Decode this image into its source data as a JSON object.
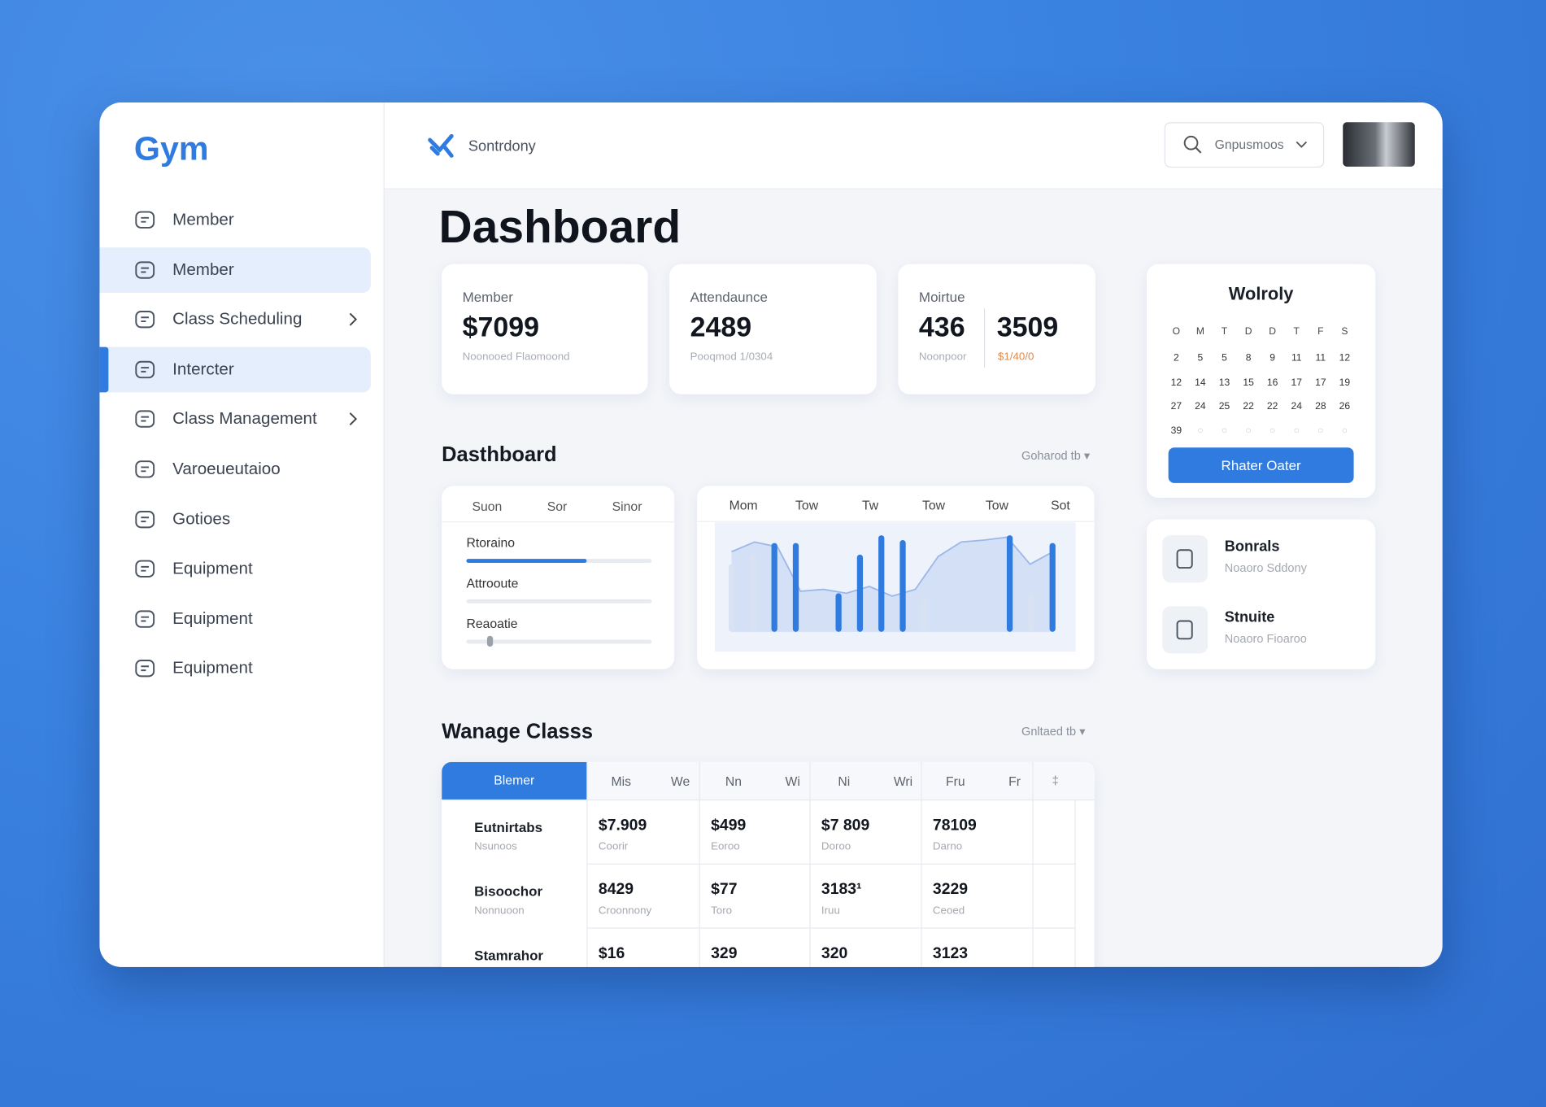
{
  "sidebar": {
    "logo": "Gym",
    "nav": [
      {
        "label": "Member"
      },
      {
        "label": "Member",
        "active": true
      },
      {
        "label": "Class Scheduling",
        "chevron": true
      },
      {
        "label": "Intercter",
        "active": true,
        "current": true
      },
      {
        "label": "Class Management",
        "chevron": true
      },
      {
        "label": "Varoeueutaioo"
      },
      {
        "label": "Gotioes"
      },
      {
        "label": "Equipment"
      },
      {
        "label": "Equipment"
      },
      {
        "label": "Equipment"
      }
    ]
  },
  "header": {
    "brand": "Sontrdony",
    "search": "Gnpusmoos"
  },
  "page_title": "Dashboard",
  "stats": [
    {
      "label": "Member",
      "value": "$7099",
      "note": "Noonooed Flaomoond"
    },
    {
      "label": "Attendaunce",
      "value": "2489",
      "note": "Pooqmod 1/0304"
    },
    {
      "label": "Moirtue",
      "value": "436",
      "note": "Noonpoor",
      "value2": "3509",
      "note2": "$1/40/0"
    }
  ],
  "calendar": {
    "title": "Wolroly",
    "weekdays": [
      "O",
      "M",
      "T",
      "D",
      "D",
      "T",
      "F",
      "S"
    ],
    "rows": [
      [
        "2",
        "5",
        "5",
        "8",
        "9",
        "11",
        "11",
        "12"
      ],
      [
        "12",
        "14",
        "13",
        "15",
        "16",
        "17",
        "17",
        "19"
      ],
      [
        "27",
        "24",
        "25",
        "22",
        "22",
        "24",
        "28",
        "26"
      ],
      [
        "39",
        "○",
        "○",
        "○",
        "○",
        "○",
        "○",
        "○"
      ]
    ],
    "button": "Rhater Oater"
  },
  "overview": {
    "title": "Dasthboard",
    "filter": "Goharod tb ▾",
    "progress": {
      "tabs": [
        "Suon",
        "Sor",
        "Sinor"
      ],
      "items": [
        {
          "label": "Rtoraino",
          "value": 65
        },
        {
          "label": "Attrooute",
          "value": 0
        },
        {
          "label": "Reaoatie",
          "value": 13
        }
      ],
      "ylim": [
        0,
        100
      ]
    },
    "chart": {
      "type": "bar",
      "categories": [
        "Mom",
        "Tow",
        "Tw",
        "Tow",
        "Tow",
        "Sot"
      ],
      "ylim": [
        0,
        100
      ],
      "bars": [
        {
          "value": 70,
          "color": "#d9e2f2"
        },
        {
          "value": 80,
          "color": "#d9e2f2"
        },
        {
          "value": 92,
          "color": "#2f7be0"
        },
        {
          "value": 92,
          "color": "#2f7be0"
        },
        {
          "value": null,
          "color": "#2f7be0"
        },
        {
          "value": 40,
          "color": "#2f7be0"
        },
        {
          "value": 80,
          "color": "#2f7be0"
        },
        {
          "value": 100,
          "color": "#2f7be0"
        },
        {
          "value": 95,
          "color": "#2f7be0"
        },
        {
          "value": 35,
          "color": "#d9e2f2"
        },
        {
          "value": null,
          "color": "#2f7be0"
        },
        {
          "value": null,
          "color": "#2f7be0"
        },
        {
          "value": null,
          "color": "#2f7be0"
        },
        {
          "value": 100,
          "color": "#2f7be0"
        },
        {
          "value": 40,
          "color": "#d9e2f2"
        },
        {
          "value": 92,
          "color": "#2f7be0"
        }
      ],
      "area": [
        83,
        93,
        88,
        42,
        44,
        40,
        47,
        37,
        44,
        78,
        93,
        95,
        98,
        70,
        83
      ],
      "area_color": "#c9d8f2"
    }
  },
  "quick_links": [
    {
      "title": "Bonrals",
      "subtitle": "Noaoro Sddony"
    },
    {
      "title": "Stnuite",
      "subtitle": "Noaoro Fioaroo"
    }
  ],
  "classes": {
    "title": "Wanage Classs",
    "filter": "Gnltaed tb ▾",
    "header_first": "Blemer",
    "header_pairs": [
      [
        "Mis",
        "We"
      ],
      [
        "Nn",
        "Wi"
      ],
      [
        "Ni",
        "Wri"
      ],
      [
        "Fru",
        "Fr"
      ]
    ],
    "header_last": "‡",
    "rows": [
      {
        "name": "Eutnirtabs",
        "sub": "Nsunoos",
        "cells": [
          {
            "value": "$7.909",
            "sub": "Coorir"
          },
          {
            "value": "$499",
            "sub": "Eoroo"
          },
          {
            "value": "$7 809",
            "sub": "Doroo"
          },
          {
            "value": "78109",
            "sub": "Darno"
          }
        ]
      },
      {
        "name": "Bisoochor",
        "sub": "Nonnuoon",
        "cells": [
          {
            "value": "8429",
            "sub": "Croonnony"
          },
          {
            "value": "$77",
            "sub": "Toro"
          },
          {
            "value": "3183¹",
            "sub": "Iruu"
          },
          {
            "value": "3229",
            "sub": "Ceoed"
          }
        ]
      },
      {
        "name": "Stamrahor",
        "cells": [
          {
            "value": "$16"
          },
          {
            "value": "329"
          },
          {
            "value": "320"
          },
          {
            "value": "3123"
          }
        ]
      }
    ]
  }
}
